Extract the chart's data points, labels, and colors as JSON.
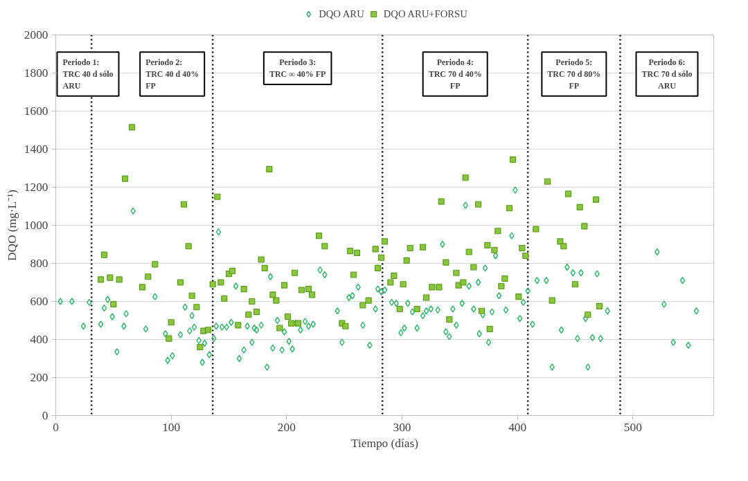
{
  "chart_data": {
    "type": "scatter",
    "xlabel": "Tiempo (días)",
    "ylabel": "DQO (mg·L⁻¹)",
    "xlim": [
      0,
      570
    ],
    "xticks": [
      0,
      100,
      200,
      300,
      400,
      500
    ],
    "ylim": [
      0,
      2000
    ],
    "yticks": [
      0,
      200,
      400,
      600,
      800,
      1000,
      1200,
      1400,
      1600,
      1800,
      2000
    ],
    "grid": "y",
    "legend": "top",
    "series": [
      {
        "name": "DQO ARU",
        "color": "#3cb371",
        "marker": "diamond",
        "x": [
          4,
          14,
          24,
          29,
          39,
          42,
          45,
          49,
          53,
          59,
          61,
          67,
          78,
          86,
          95,
          97,
          101,
          108,
          112,
          116,
          118,
          120,
          124,
          127,
          129,
          133,
          137,
          139,
          141,
          144,
          148,
          152,
          156,
          159,
          163,
          166,
          170,
          172,
          174,
          178,
          183,
          186,
          188,
          192,
          196,
          198,
          202,
          205,
          208,
          212,
          216,
          219,
          223,
          229,
          233,
          244,
          248,
          254,
          257,
          262,
          266,
          272,
          277,
          279,
          282,
          285,
          291,
          295,
          299,
          302,
          305,
          309,
          313,
          318,
          321,
          325,
          331,
          335,
          338,
          341,
          344,
          347,
          352,
          355,
          358,
          362,
          366,
          367,
          370,
          372,
          375,
          378,
          381,
          384,
          390,
          395,
          398,
          402,
          405,
          409,
          413,
          417,
          425,
          430,
          438,
          443,
          448,
          452,
          455,
          459,
          461,
          465,
          469,
          472,
          478,
          521,
          527,
          535,
          543,
          548,
          555
        ],
        "values": [
          600,
          600,
          470,
          595,
          480,
          565,
          610,
          520,
          335,
          470,
          535,
          1075,
          455,
          625,
          430,
          290,
          315,
          425,
          570,
          445,
          525,
          465,
          395,
          280,
          380,
          320,
          405,
          470,
          965,
          465,
          465,
          490,
          680,
          300,
          345,
          470,
          385,
          460,
          450,
          475,
          255,
          730,
          355,
          500,
          345,
          440,
          390,
          350,
          485,
          450,
          495,
          470,
          480,
          765,
          740,
          550,
          385,
          620,
          630,
          675,
          475,
          370,
          560,
          665,
          650,
          660,
          595,
          590,
          435,
          460,
          590,
          545,
          460,
          525,
          550,
          560,
          555,
          900,
          440,
          415,
          560,
          475,
          590,
          1105,
          680,
          560,
          700,
          430,
          530,
          775,
          385,
          545,
          840,
          630,
          555,
          945,
          1185,
          510,
          595,
          655,
          480,
          710,
          710,
          255,
          450,
          780,
          750,
          405,
          750,
          510,
          255,
          410,
          745,
          405,
          550,
          860,
          585,
          385,
          710,
          370,
          550
        ]
      },
      {
        "name": "DQO ARU+FORSU",
        "color": "#8cc63f",
        "marker": "square",
        "x": [
          39,
          42,
          47,
          50,
          55,
          60,
          66,
          75,
          80,
          86,
          98,
          100,
          108,
          111,
          115,
          118,
          122,
          125,
          128,
          132,
          136,
          140,
          143,
          146,
          150,
          153,
          158,
          163,
          167,
          170,
          174,
          178,
          181,
          185,
          188,
          191,
          194,
          198,
          201,
          204,
          207,
          210,
          213,
          219,
          222,
          228,
          233,
          248,
          251,
          255,
          258,
          261,
          266,
          271,
          277,
          279,
          282,
          285,
          290,
          293,
          298,
          301,
          304,
          307,
          313,
          318,
          321,
          326,
          332,
          334,
          338,
          341,
          347,
          349,
          353,
          355,
          358,
          362,
          366,
          369,
          374,
          376,
          380,
          383,
          386,
          389,
          393,
          396,
          401,
          404,
          407,
          416,
          426,
          430,
          437,
          440,
          444,
          450,
          454,
          458,
          461,
          468,
          471
        ],
        "values": [
          715,
          845,
          725,
          585,
          715,
          1245,
          1515,
          675,
          730,
          795,
          405,
          490,
          700,
          1110,
          890,
          630,
          570,
          360,
          445,
          450,
          690,
          1150,
          700,
          615,
          745,
          760,
          475,
          665,
          530,
          600,
          545,
          820,
          775,
          1295,
          635,
          605,
          460,
          685,
          520,
          485,
          750,
          485,
          660,
          665,
          635,
          945,
          890,
          485,
          470,
          865,
          740,
          855,
          580,
          605,
          875,
          775,
          830,
          915,
          700,
          735,
          560,
          690,
          815,
          880,
          560,
          885,
          620,
          675,
          675,
          1125,
          805,
          505,
          750,
          685,
          700,
          1250,
          860,
          780,
          1110,
          550,
          895,
          455,
          870,
          970,
          680,
          720,
          1090,
          1345,
          625,
          880,
          840,
          980,
          1230,
          605,
          915,
          890,
          1165,
          690,
          1095,
          995,
          530,
          1135,
          575
        ]
      }
    ],
    "ref_lines": [
      {
        "axis": "x",
        "value": 31,
        "color": "#000000",
        "line_style": "dotted"
      },
      {
        "axis": "x",
        "value": 136,
        "color": "#000000",
        "line_style": "dotted"
      },
      {
        "axis": "x",
        "value": 283,
        "color": "#000000",
        "line_style": "dotted"
      },
      {
        "axis": "x",
        "value": 409,
        "color": "#000000",
        "line_style": "dotted"
      },
      {
        "axis": "x",
        "value": 489,
        "color": "#000000",
        "line_style": "dotted"
      }
    ],
    "annotations": [
      "Periodo 1:\nTRC 40 d sólo\nARU",
      "Periodo 2:\nTRC 40 d 40%\nFP",
      "Periodo 3:\nTRC ∞ 40% FP",
      "Periodo 4:\nTRC 70 d 40%\nFP",
      "Periodo 5:\nTRC 70 d 80%\nFP",
      "Periodo 6:\nTRC 70 d sólo\nARU"
    ]
  }
}
